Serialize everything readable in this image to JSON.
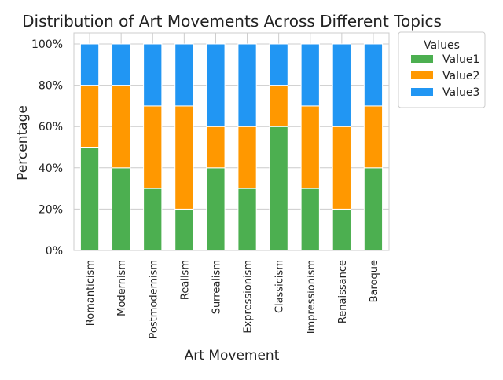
{
  "chart_data": {
    "type": "bar",
    "stacked": true,
    "title": "Distribution of Art Movements Across Different Topics",
    "xlabel": "Art Movement",
    "ylabel": "Percentage",
    "categories": [
      "Romanticism",
      "Modernism",
      "Postmodernism",
      "Realism",
      "Surrealism",
      "Expressionism",
      "Classicism",
      "Impressionism",
      "Renaissance",
      "Baroque"
    ],
    "series": [
      {
        "name": "Value1",
        "color": "#4caf50",
        "values": [
          50,
          40,
          30,
          20,
          40,
          30,
          60,
          30,
          20,
          40
        ]
      },
      {
        "name": "Value2",
        "color": "#ff9800",
        "values": [
          30,
          40,
          40,
          50,
          20,
          30,
          20,
          40,
          40,
          30
        ]
      },
      {
        "name": "Value3",
        "color": "#2196f3",
        "values": [
          20,
          20,
          30,
          30,
          40,
          40,
          20,
          30,
          40,
          30
        ]
      }
    ],
    "ylim": [
      0,
      100
    ],
    "yticks": [
      0,
      20,
      40,
      60,
      80,
      100
    ],
    "ytick_labels": [
      "0%",
      "20%",
      "40%",
      "60%",
      "80%",
      "100%"
    ],
    "grid": true,
    "legend": {
      "title": "Values",
      "placement": "outside-top-right"
    }
  }
}
